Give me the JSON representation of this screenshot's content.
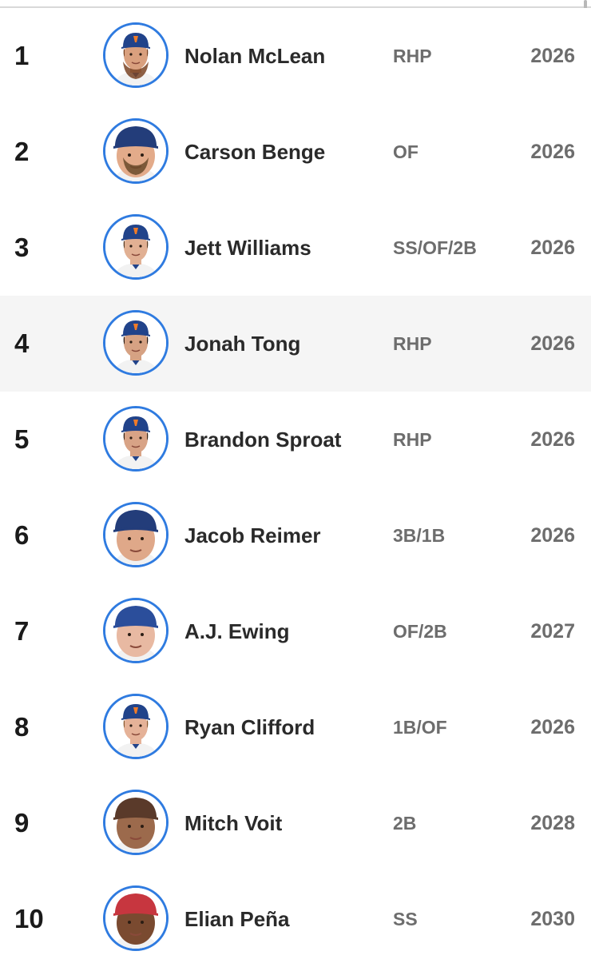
{
  "prospects": [
    {
      "rank": "1",
      "name": "Nolan McLean",
      "position": "RHP",
      "eta": "2026",
      "skin": "#d9a07e",
      "cap": "#21438a",
      "hair": "#7a4424",
      "beard": true,
      "capstyle": "cap-logo"
    },
    {
      "rank": "2",
      "name": "Carson Benge",
      "position": "OF",
      "eta": "2026",
      "skin": "#e3ab8a",
      "cap": "#233d7a",
      "hair": "#6a4a2a",
      "beard": true,
      "capstyle": "cap-wide"
    },
    {
      "rank": "3",
      "name": "Jett Williams",
      "position": "SS/OF/2B",
      "eta": "2026",
      "skin": "#e1b093",
      "cap": "#21438a",
      "hair": "#5a3d25",
      "beard": false,
      "capstyle": "cap-logo"
    },
    {
      "rank": "4",
      "name": "Jonah Tong",
      "position": "RHP",
      "eta": "2026",
      "skin": "#d6a283",
      "cap": "#21438a",
      "hair": "#2a1a12",
      "beard": false,
      "capstyle": "cap-logo"
    },
    {
      "rank": "5",
      "name": "Brandon Sproat",
      "position": "RHP",
      "eta": "2026",
      "skin": "#d8a386",
      "cap": "#21438a",
      "hair": "#3a2414",
      "beard": false,
      "capstyle": "cap-logo"
    },
    {
      "rank": "6",
      "name": "Jacob Reimer",
      "position": "3B/1B",
      "eta": "2026",
      "skin": "#dfa889",
      "cap": "#233d7a",
      "hair": "#3a2818",
      "beard": false,
      "capstyle": "cap-wide"
    },
    {
      "rank": "7",
      "name": "A.J. Ewing",
      "position": "OF/2B",
      "eta": "2027",
      "skin": "#e8b9a2",
      "cap": "#2b4e9b",
      "hair": "#6a4a2a",
      "beard": false,
      "capstyle": "cap-wide"
    },
    {
      "rank": "8",
      "name": "Ryan Clifford",
      "position": "1B/OF",
      "eta": "2026",
      "skin": "#e5b298",
      "cap": "#21438a",
      "hair": "#8a5a30",
      "beard": false,
      "capstyle": "cap-logo"
    },
    {
      "rank": "9",
      "name": "Mitch Voit",
      "position": "2B",
      "eta": "2028",
      "skin": "#9c6a4c",
      "cap": "#5a3a2a",
      "hair": "#1a120c",
      "beard": false,
      "capstyle": "cap-wide"
    },
    {
      "rank": "10",
      "name": "Elian Peña",
      "position": "SS",
      "eta": "2030",
      "skin": "#7a4a30",
      "cap": "#c7363f",
      "hair": "#1a120c",
      "beard": false,
      "capstyle": "cap-wide"
    }
  ],
  "highlighted_rank": "4",
  "colors": {
    "avatar_ring": "#2f7be0",
    "highlight_row": "#f5f5f5",
    "secondary_text": "#6d6d6d",
    "primary_text": "#2a2a2a"
  }
}
